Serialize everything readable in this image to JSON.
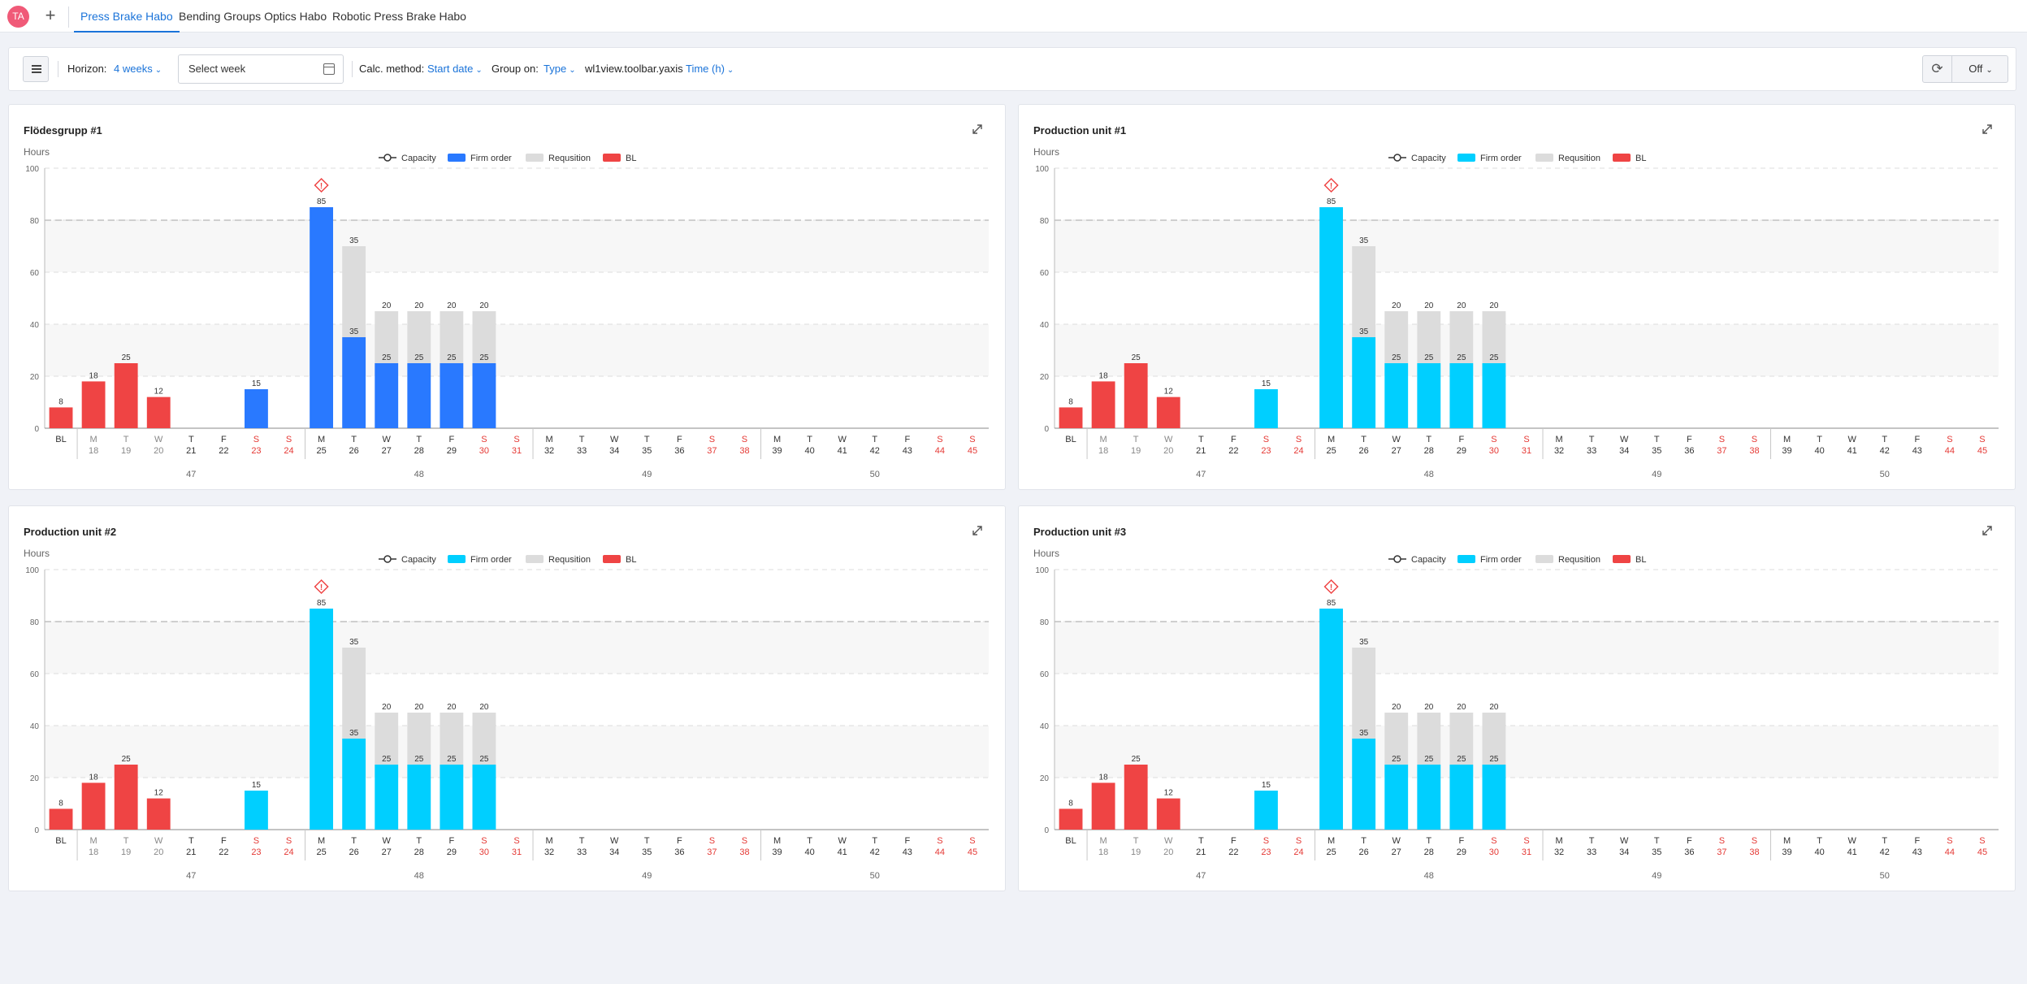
{
  "tabs_bar": {
    "avatar": "TA",
    "add": "+",
    "tabs": [
      {
        "label": "Press Brake Habo",
        "active": true
      },
      {
        "label": "Bending Groups Optics Habo",
        "active": false
      },
      {
        "label": "Robotic Press Brake Habo",
        "active": false
      }
    ]
  },
  "toolbar": {
    "horizon_label": "Horizon:",
    "horizon_value": "4 weeks",
    "week_placeholder": "Select week",
    "calc_label": "Calc. method:",
    "calc_value": "Start date",
    "group_label": "Group on:",
    "group_value": "Type",
    "yaxis_key": "wl1view.toolbar.yaxis",
    "yaxis_value": "Time (h)",
    "off_value": "Off"
  },
  "colors": {
    "accent": "#1a73d9",
    "firm_blue": "#2979ff",
    "firm_cyan": "#00cfff",
    "requisition": "#dcdcdc",
    "bl": "#ef4444",
    "weekend": "#e53935"
  },
  "legend": [
    "Capacity",
    "Firm order",
    "Requsition",
    "BL"
  ],
  "y_unit": "Hours",
  "chart_data": [
    {
      "type": "bar",
      "title": "Flödesgrupp #1",
      "firm_color": "#2979ff",
      "ylabel": "Hours",
      "ylim": [
        0,
        100
      ],
      "yticks": [
        0,
        20,
        40,
        60,
        80,
        100
      ],
      "capacity": 80,
      "categories": [
        "BL",
        "M 18",
        "T 19",
        "W 20",
        "T 21",
        "F 22",
        "S 23",
        "S 24",
        "M 25",
        "T 26",
        "W 27",
        "T 28",
        "F 29",
        "S 30",
        "S 31",
        "M 32",
        "T 33",
        "W 34",
        "T 35",
        "F 36",
        "S 37",
        "S 38",
        "M 39",
        "T 40",
        "W 41",
        "T 42",
        "F 43",
        "S 44",
        "S 45"
      ],
      "weeks": [
        "47",
        "48",
        "49",
        "50"
      ],
      "series": [
        {
          "name": "BL",
          "values": [
            8,
            18,
            25,
            12,
            0,
            0,
            0,
            0,
            0,
            0,
            0,
            0,
            0,
            0,
            0,
            0,
            0,
            0,
            0,
            0,
            0,
            0,
            0,
            0,
            0,
            0,
            0,
            0,
            0
          ]
        },
        {
          "name": "Firm order",
          "values": [
            0,
            0,
            0,
            0,
            0,
            0,
            15,
            0,
            85,
            35,
            25,
            25,
            25,
            25,
            0,
            0,
            0,
            0,
            0,
            0,
            0,
            0,
            0,
            0,
            0,
            0,
            0,
            0,
            0
          ]
        },
        {
          "name": "Requsition",
          "values": [
            0,
            0,
            0,
            0,
            0,
            0,
            0,
            0,
            0,
            35,
            20,
            20,
            20,
            20,
            0,
            0,
            0,
            0,
            0,
            0,
            0,
            0,
            0,
            0,
            0,
            0,
            0,
            0,
            0
          ]
        }
      ],
      "warning_on": "M 25"
    },
    {
      "type": "bar",
      "title": "Production unit #1",
      "firm_color": "#00cfff",
      "ylabel": "Hours",
      "ylim": [
        0,
        100
      ],
      "yticks": [
        0,
        20,
        40,
        60,
        80,
        100
      ],
      "capacity": 80,
      "categories": [
        "BL",
        "M 18",
        "T 19",
        "W 20",
        "T 21",
        "F 22",
        "S 23",
        "S 24",
        "M 25",
        "T 26",
        "W 27",
        "T 28",
        "F 29",
        "S 30",
        "S 31",
        "M 32",
        "T 33",
        "W 34",
        "T 35",
        "F 36",
        "S 37",
        "S 38",
        "M 39",
        "T 40",
        "W 41",
        "T 42",
        "F 43",
        "S 44",
        "S 45"
      ],
      "weeks": [
        "47",
        "48",
        "49",
        "50"
      ],
      "series": [
        {
          "name": "BL",
          "values": [
            8,
            18,
            25,
            12,
            0,
            0,
            0,
            0,
            0,
            0,
            0,
            0,
            0,
            0,
            0,
            0,
            0,
            0,
            0,
            0,
            0,
            0,
            0,
            0,
            0,
            0,
            0,
            0,
            0
          ]
        },
        {
          "name": "Firm order",
          "values": [
            0,
            0,
            0,
            0,
            0,
            0,
            15,
            0,
            85,
            35,
            25,
            25,
            25,
            25,
            0,
            0,
            0,
            0,
            0,
            0,
            0,
            0,
            0,
            0,
            0,
            0,
            0,
            0,
            0
          ]
        },
        {
          "name": "Requsition",
          "values": [
            0,
            0,
            0,
            0,
            0,
            0,
            0,
            0,
            0,
            35,
            20,
            20,
            20,
            20,
            0,
            0,
            0,
            0,
            0,
            0,
            0,
            0,
            0,
            0,
            0,
            0,
            0,
            0,
            0
          ]
        }
      ],
      "warning_on": "M 25"
    },
    {
      "type": "bar",
      "title": "Production unit #2",
      "firm_color": "#00cfff",
      "ylabel": "Hours",
      "ylim": [
        0,
        100
      ],
      "yticks": [
        0,
        20,
        40,
        60,
        80,
        100
      ],
      "capacity": 80,
      "categories": [
        "BL",
        "M 18",
        "T 19",
        "W 20",
        "T 21",
        "F 22",
        "S 23",
        "S 24",
        "M 25",
        "T 26",
        "W 27",
        "T 28",
        "F 29",
        "S 30",
        "S 31",
        "M 32",
        "T 33",
        "W 34",
        "T 35",
        "F 36",
        "S 37",
        "S 38",
        "M 39",
        "T 40",
        "W 41",
        "T 42",
        "F 43",
        "S 44",
        "S 45"
      ],
      "weeks": [
        "47",
        "48",
        "49",
        "50"
      ],
      "series": [
        {
          "name": "BL",
          "values": [
            8,
            18,
            25,
            12,
            0,
            0,
            0,
            0,
            0,
            0,
            0,
            0,
            0,
            0,
            0,
            0,
            0,
            0,
            0,
            0,
            0,
            0,
            0,
            0,
            0,
            0,
            0,
            0,
            0
          ]
        },
        {
          "name": "Firm order",
          "values": [
            0,
            0,
            0,
            0,
            0,
            0,
            15,
            0,
            85,
            35,
            25,
            25,
            25,
            25,
            0,
            0,
            0,
            0,
            0,
            0,
            0,
            0,
            0,
            0,
            0,
            0,
            0,
            0,
            0
          ]
        },
        {
          "name": "Requsition",
          "values": [
            0,
            0,
            0,
            0,
            0,
            0,
            0,
            0,
            0,
            35,
            20,
            20,
            20,
            20,
            0,
            0,
            0,
            0,
            0,
            0,
            0,
            0,
            0,
            0,
            0,
            0,
            0,
            0,
            0
          ]
        }
      ],
      "warning_on": "M 25"
    },
    {
      "type": "bar",
      "title": "Production unit #3",
      "firm_color": "#00cfff",
      "ylabel": "Hours",
      "ylim": [
        0,
        100
      ],
      "yticks": [
        0,
        20,
        40,
        60,
        80,
        100
      ],
      "capacity": 80,
      "categories": [
        "BL",
        "M 18",
        "T 19",
        "W 20",
        "T 21",
        "F 22",
        "S 23",
        "S 24",
        "M 25",
        "T 26",
        "W 27",
        "T 28",
        "F 29",
        "S 30",
        "S 31",
        "M 32",
        "T 33",
        "W 34",
        "T 35",
        "F 36",
        "S 37",
        "S 38",
        "M 39",
        "T 40",
        "W 41",
        "T 42",
        "F 43",
        "S 44",
        "S 45"
      ],
      "weeks": [
        "47",
        "48",
        "49",
        "50"
      ],
      "series": [
        {
          "name": "BL",
          "values": [
            8,
            18,
            25,
            12,
            0,
            0,
            0,
            0,
            0,
            0,
            0,
            0,
            0,
            0,
            0,
            0,
            0,
            0,
            0,
            0,
            0,
            0,
            0,
            0,
            0,
            0,
            0,
            0,
            0
          ]
        },
        {
          "name": "Firm order",
          "values": [
            0,
            0,
            0,
            0,
            0,
            0,
            15,
            0,
            85,
            35,
            25,
            25,
            25,
            25,
            0,
            0,
            0,
            0,
            0,
            0,
            0,
            0,
            0,
            0,
            0,
            0,
            0,
            0,
            0
          ]
        },
        {
          "name": "Requsition",
          "values": [
            0,
            0,
            0,
            0,
            0,
            0,
            0,
            0,
            0,
            35,
            20,
            20,
            20,
            20,
            0,
            0,
            0,
            0,
            0,
            0,
            0,
            0,
            0,
            0,
            0,
            0,
            0,
            0,
            0
          ]
        }
      ],
      "warning_on": "M 25"
    }
  ]
}
